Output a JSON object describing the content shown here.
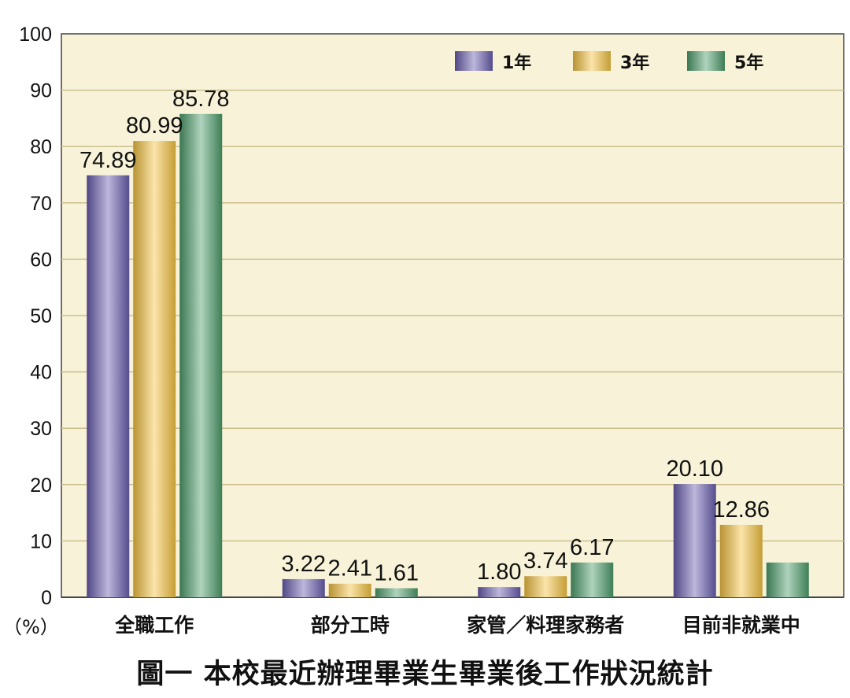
{
  "chart_data": {
    "type": "bar",
    "categories": [
      "全職工作",
      "部分工時",
      "家管／料理家務者",
      "目前非就業中"
    ],
    "series": [
      {
        "name": "1年",
        "values": [
          74.89,
          3.22,
          1.8,
          20.1
        ],
        "color": "#6a5fb0"
      },
      {
        "name": "3年",
        "values": [
          80.99,
          2.41,
          3.74,
          12.86
        ],
        "color": "#f5c442"
      },
      {
        "name": "5年",
        "values": [
          85.78,
          1.61,
          6.17,
          6.17
        ],
        "color": "#4e9e6c"
      }
    ],
    "data_labels": [
      [
        "74.89",
        "3.22",
        "1.80",
        "20.10"
      ],
      [
        "80.99",
        "2.41",
        "3.74",
        "12.86"
      ],
      [
        "85.78",
        "1.61",
        "6.17",
        ""
      ]
    ],
    "ylim": [
      0,
      100
    ],
    "yticks": [
      0,
      10,
      20,
      30,
      40,
      50,
      60,
      70,
      80,
      90,
      100
    ],
    "y_unit_label": "（%）",
    "grid": true,
    "plot_background": "#f8f3d8",
    "gridline_color": "#cbbf8e",
    "legend_position": "top-right",
    "caption": "圖一  本校最近辦理畢業生畢業後工作狀況統計"
  }
}
